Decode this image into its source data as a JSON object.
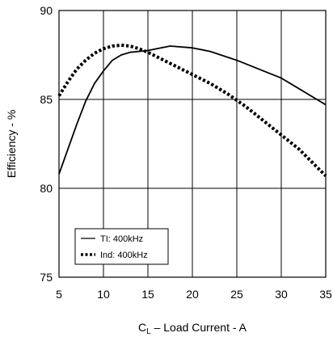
{
  "chart_data": {
    "type": "line",
    "xlabel_prefix": "C",
    "xlabel_sub": "L",
    "xlabel_rest": " – Load Current - A",
    "ylabel": "Efficiency - %",
    "xlim": [
      5,
      35
    ],
    "ylim": [
      75,
      90
    ],
    "x_ticks": [
      5,
      10,
      15,
      20,
      25,
      30,
      35
    ],
    "y_ticks": [
      75,
      80,
      85,
      90
    ],
    "grid": true,
    "legend_position": "lower-left",
    "series": [
      {
        "name": "TI: 400kHz",
        "style": "solid",
        "color": "#000000",
        "x": [
          5,
          6,
          7,
          8,
          9,
          10,
          11,
          12,
          13,
          14,
          15,
          16,
          17.5,
          20,
          22,
          25,
          28,
          30,
          32,
          35
        ],
        "y": [
          80.8,
          82.2,
          83.6,
          84.9,
          85.9,
          86.6,
          87.2,
          87.5,
          87.65,
          87.7,
          87.75,
          87.85,
          88.0,
          87.9,
          87.7,
          87.2,
          86.6,
          86.2,
          85.6,
          84.7
        ]
      },
      {
        "name": "Ind: 400kHz",
        "style": "dotted",
        "color": "#000000",
        "x": [
          5,
          6,
          7,
          8,
          9,
          10,
          11,
          12,
          13,
          14,
          15,
          16,
          18,
          20,
          22,
          24,
          26,
          28,
          30,
          32,
          34,
          35
        ],
        "y": [
          85.2,
          86.0,
          86.7,
          87.2,
          87.6,
          87.85,
          88.0,
          88.05,
          88.0,
          87.85,
          87.65,
          87.4,
          86.9,
          86.4,
          85.9,
          85.3,
          84.6,
          83.8,
          83.0,
          82.2,
          81.2,
          80.7
        ]
      }
    ]
  }
}
